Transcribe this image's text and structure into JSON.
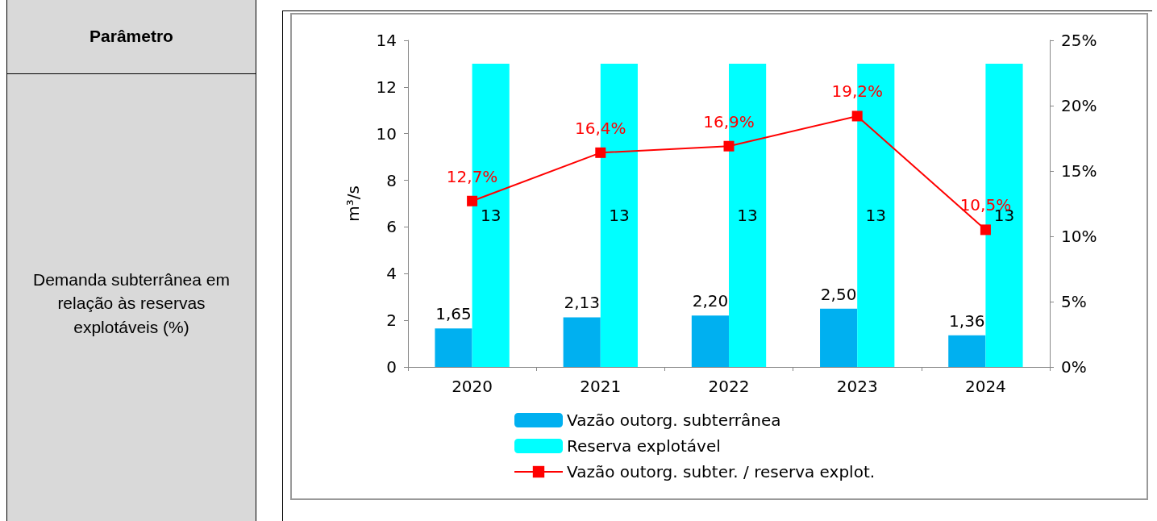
{
  "chart_data": {
    "type": "bar",
    "categories": [
      "2020",
      "2021",
      "2022",
      "2023",
      "2024"
    ],
    "series": [
      {
        "name": "Vazão outorg. subterrânea",
        "color": "#00b0f0",
        "values": [
          1.65,
          2.13,
          2.2,
          2.5,
          1.36
        ],
        "value_labels": [
          "1,65",
          "2,13",
          "2,20",
          "2,50",
          "1,36"
        ]
      },
      {
        "name": "Reserva explotável",
        "color": "#00ffff",
        "values": [
          13,
          13,
          13,
          13,
          13
        ],
        "value_labels": [
          "13",
          "13",
          "13",
          "13",
          "13"
        ]
      },
      {
        "name": "Vazão outorg. subter. / reserva explot.",
        "type": "line",
        "axis": "y2",
        "color": "#ff0000",
        "marker": "square",
        "values": [
          12.7,
          16.4,
          16.9,
          19.2,
          10.5
        ],
        "value_labels": [
          "12,7%",
          "16,4%",
          "16,9%",
          "19,2%",
          "10,5%"
        ]
      }
    ],
    "ylabel": "m³/s",
    "ylim": [
      0,
      14
    ],
    "yticks": [
      0,
      2,
      4,
      6,
      8,
      10,
      12,
      14
    ],
    "y2lim": [
      0,
      25
    ],
    "y2ticks": [
      {
        "value": 0,
        "label": "0%"
      },
      {
        "value": 5,
        "label": "5%"
      },
      {
        "value": 10,
        "label": "10%"
      },
      {
        "value": 15,
        "label": "15%"
      },
      {
        "value": 20,
        "label": "20%"
      },
      {
        "value": 25,
        "label": "25%"
      }
    ],
    "grid": false,
    "legend": "bottom",
    "annotations": [
      "Parâmetro",
      "Demanda subterrânea em relação às reservas explotáveis (%)"
    ]
  }
}
